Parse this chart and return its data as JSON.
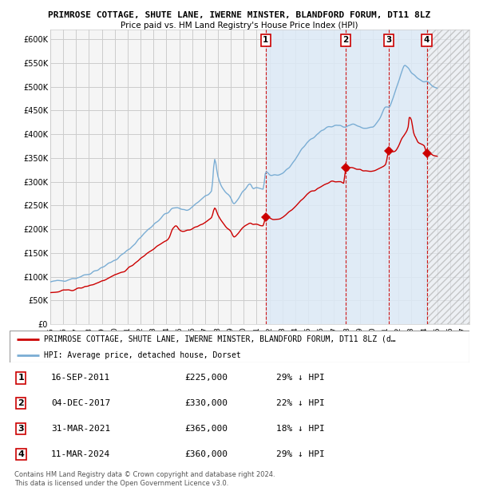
{
  "title1": "PRIMROSE COTTAGE, SHUTE LANE, IWERNE MINSTER, BLANDFORD FORUM, DT11 8LZ",
  "title2": "Price paid vs. HM Land Registry's House Price Index (HPI)",
  "xlim_start": 1995.0,
  "xlim_end": 2027.5,
  "ylim_min": 0,
  "ylim_max": 620000,
  "yticks": [
    0,
    50000,
    100000,
    150000,
    200000,
    250000,
    300000,
    350000,
    400000,
    450000,
    500000,
    550000,
    600000
  ],
  "ytick_labels": [
    "£0",
    "£50K",
    "£100K",
    "£150K",
    "£200K",
    "£250K",
    "£300K",
    "£350K",
    "£400K",
    "£450K",
    "£500K",
    "£550K",
    "£600K"
  ],
  "xticks": [
    1995,
    1996,
    1997,
    1998,
    1999,
    2000,
    2001,
    2002,
    2003,
    2004,
    2005,
    2006,
    2007,
    2008,
    2009,
    2010,
    2011,
    2012,
    2013,
    2014,
    2015,
    2016,
    2017,
    2018,
    2019,
    2020,
    2021,
    2022,
    2023,
    2024,
    2025,
    2026,
    2027
  ],
  "hpi_color": "#7aadd4",
  "price_color": "#cc0000",
  "sale_dates": [
    2011.71,
    2017.92,
    2021.25,
    2024.19
  ],
  "sale_prices": [
    225000,
    330000,
    365000,
    360000
  ],
  "sale_labels": [
    "1",
    "2",
    "3",
    "4"
  ],
  "shade_start": 2011.71,
  "shade_end": 2024.19,
  "hatch_start": 2024.19,
  "legend_label1": "PRIMROSE COTTAGE, SHUTE LANE, IWERNE MINSTER, BLANDFORD FORUM, DT11 8LZ (d…",
  "legend_label2": "HPI: Average price, detached house, Dorset",
  "table_data": [
    [
      "1",
      "16-SEP-2011",
      "£225,000",
      "29% ↓ HPI"
    ],
    [
      "2",
      "04-DEC-2017",
      "£330,000",
      "22% ↓ HPI"
    ],
    [
      "3",
      "31-MAR-2021",
      "£365,000",
      "18% ↓ HPI"
    ],
    [
      "4",
      "11-MAR-2024",
      "£360,000",
      "29% ↓ HPI"
    ]
  ],
  "footer": "Contains HM Land Registry data © Crown copyright and database right 2024.\nThis data is licensed under the Open Government Licence v3.0.",
  "bg_color": "#f0f4f8",
  "shade_color": "#ddeaf7",
  "grid_color": "#cccccc"
}
